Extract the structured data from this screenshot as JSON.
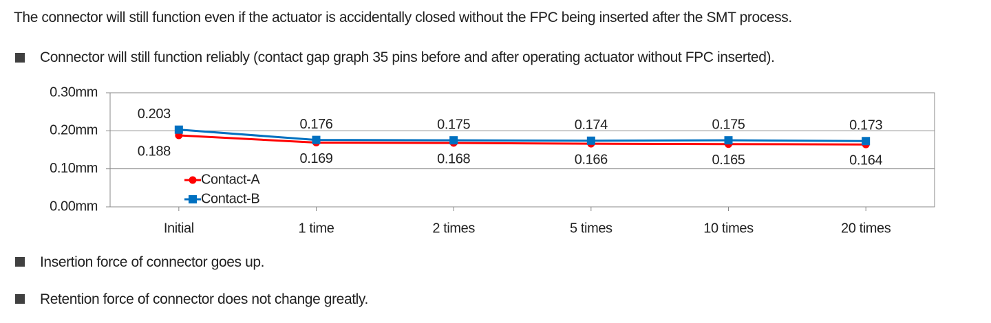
{
  "intro": "The connector will still function even if the actuator is accidentally closed without the FPC being inserted after the SMT process.",
  "bullets": [
    "Connector will still function reliably (contact gap graph 35 pins before and after operating actuator without FPC inserted).",
    "Insertion force of connector goes up.",
    "Retention force of connector does not change greatly."
  ],
  "chart_data": {
    "type": "line",
    "categories": [
      "Initial",
      "1 time",
      "2 times",
      "5 times",
      "10 times",
      "20 times"
    ],
    "series": [
      {
        "name": "Contact-A",
        "color": "#ff0000",
        "marker": "circle",
        "values": [
          0.188,
          0.169,
          0.168,
          0.166,
          0.165,
          0.164
        ]
      },
      {
        "name": "Contact-B",
        "color": "#0070c0",
        "marker": "square",
        "values": [
          0.203,
          0.176,
          0.175,
          0.174,
          0.175,
          0.173
        ]
      }
    ],
    "ylim": [
      0,
      0.3
    ],
    "yticks": [
      {
        "value": 0,
        "label": "0.00mm"
      },
      {
        "value": 0.1,
        "label": "0.10mm"
      },
      {
        "value": 0.2,
        "label": "0.20mm"
      },
      {
        "value": 0.3,
        "label": "0.30mm"
      }
    ],
    "grid": true
  }
}
